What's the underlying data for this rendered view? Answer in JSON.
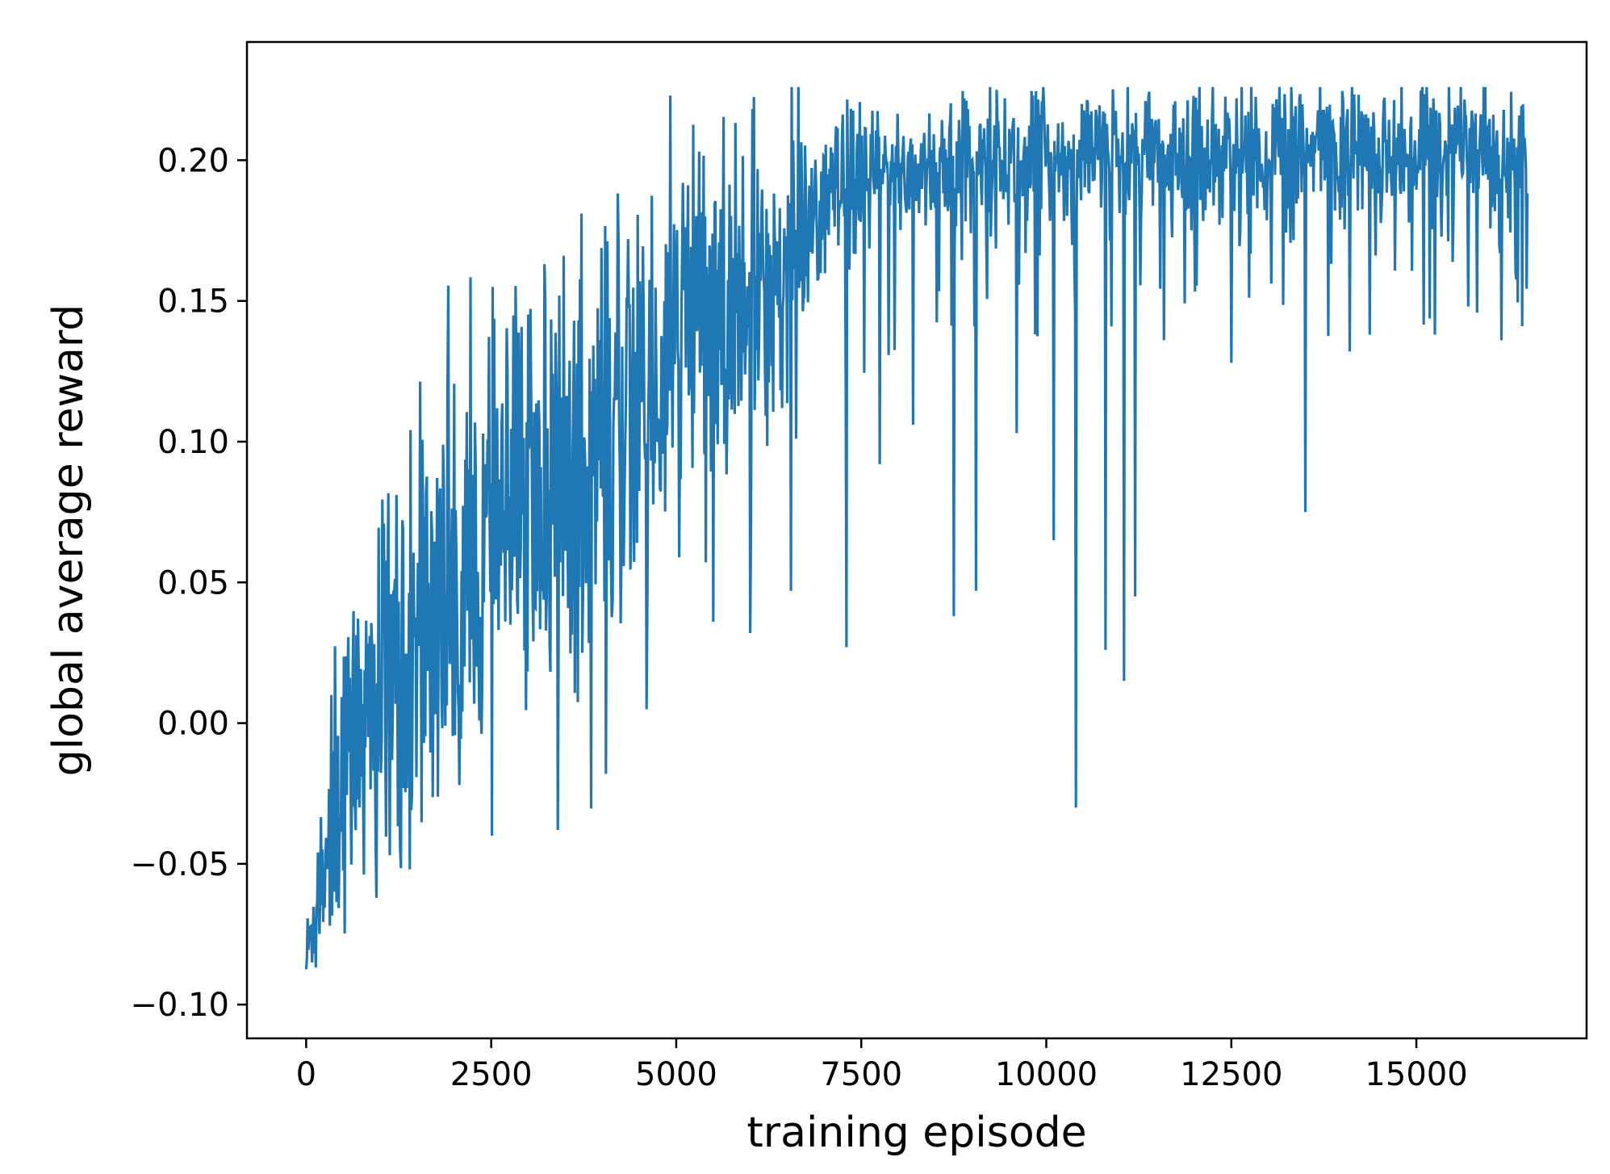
{
  "chart_data": {
    "type": "line",
    "xlabel": "training episode",
    "ylabel": "global average reward",
    "xlim": [
      -800,
      17300
    ],
    "ylim": [
      -0.112,
      0.242
    ],
    "x_ticks": [
      0,
      2500,
      5000,
      7500,
      10000,
      12500,
      15000
    ],
    "x_tick_labels": [
      "0",
      "2500",
      "5000",
      "7500",
      "10000",
      "12500",
      "15000"
    ],
    "y_ticks": [
      -0.1,
      -0.05,
      0.0,
      0.05,
      0.1,
      0.15,
      0.2
    ],
    "y_tick_labels": [
      "−0.10",
      "−0.05",
      "0.00",
      "0.05",
      "0.10",
      "0.15",
      "0.20"
    ],
    "grid": false,
    "legend": false,
    "series": [
      {
        "color": "#1f77b4",
        "x_start": 0,
        "x_step": 10,
        "n_points": 1651,
        "x": [
          0,
          250,
          500,
          1000,
          1500,
          2000,
          2500,
          3000,
          3500,
          4000,
          4500,
          5000,
          5500,
          6000,
          6500,
          7000,
          7500,
          8000,
          9000,
          10000,
          11000,
          12000,
          13000,
          14000,
          15000,
          16000,
          16500
        ],
        "trend": [
          -0.085,
          -0.045,
          -0.015,
          0.01,
          0.03,
          0.045,
          0.062,
          0.077,
          0.09,
          0.102,
          0.114,
          0.128,
          0.14,
          0.152,
          0.165,
          0.185,
          0.192,
          0.196,
          0.2,
          0.2,
          0.201,
          0.202,
          0.203,
          0.203,
          0.204,
          0.204,
          0.204
        ],
        "noise_sd": [
          0.008,
          0.02,
          0.025,
          0.03,
          0.035,
          0.04,
          0.04,
          0.04,
          0.04,
          0.038,
          0.035,
          0.032,
          0.03,
          0.028,
          0.025,
          0.015,
          0.013,
          0.012,
          0.012,
          0.012,
          0.012,
          0.012,
          0.012,
          0.012,
          0.012,
          0.012,
          0.012
        ],
        "y_max": 0.226,
        "dips": [
          {
            "x": 1400,
            "y": -0.052
          },
          {
            "x": 3400,
            "y": -0.038
          },
          {
            "x": 4050,
            "y": -0.018
          },
          {
            "x": 4600,
            "y": 0.005
          },
          {
            "x": 5500,
            "y": 0.036
          },
          {
            "x": 6000,
            "y": 0.032
          },
          {
            "x": 6550,
            "y": 0.047
          },
          {
            "x": 7300,
            "y": 0.027
          },
          {
            "x": 7750,
            "y": 0.092
          },
          {
            "x": 8200,
            "y": 0.106
          },
          {
            "x": 8750,
            "y": 0.038
          },
          {
            "x": 9050,
            "y": 0.047
          },
          {
            "x": 9600,
            "y": 0.103
          },
          {
            "x": 10100,
            "y": 0.065
          },
          {
            "x": 10400,
            "y": -0.03
          },
          {
            "x": 10800,
            "y": 0.026
          },
          {
            "x": 11050,
            "y": 0.015
          },
          {
            "x": 11200,
            "y": 0.045
          },
          {
            "x": 12500,
            "y": 0.128
          },
          {
            "x": 13500,
            "y": 0.075
          },
          {
            "x": 14100,
            "y": 0.132
          },
          {
            "x": 15250,
            "y": 0.138
          },
          {
            "x": 16150,
            "y": 0.136
          }
        ]
      }
    ]
  }
}
